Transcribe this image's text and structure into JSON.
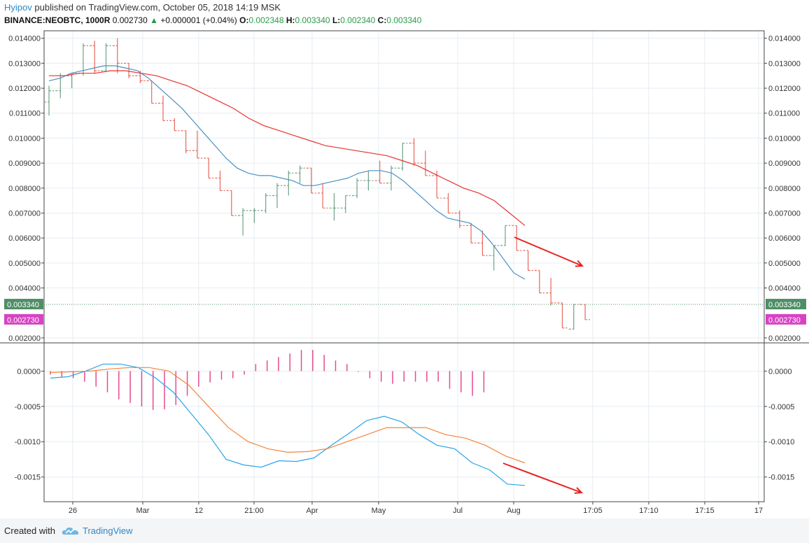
{
  "header": {
    "user": "Hyipov",
    "published": "published on TradingView.com, October 05, 2018 14:19 MSK",
    "symbol": "BINANCE:NEOBTC, 1000R",
    "last": "0.002730",
    "change": "+0.000001 (+0.04%)",
    "o_label": "O:",
    "o_value": "0.002348",
    "h_label": "H:",
    "h_value": "0.003340",
    "l_label": "L:",
    "l_value": "0.002340",
    "c_label": "C:",
    "c_value": "0.003340"
  },
  "footer": {
    "created_with": "Created with",
    "brand": "TradingView"
  },
  "colors": {
    "bull": "#6fa287",
    "bear": "#e8685a",
    "ma_fast": "#4a90c2",
    "ma_slow": "#e8322e",
    "macd": "#2aa4e8",
    "signal": "#f4843a",
    "histogram": "#e54b8e",
    "arrow": "#e8221f",
    "last_price_tag": "#4f8e66",
    "close_tag": "#d643c3"
  },
  "chart_data": [
    {
      "type": "ohlc",
      "name": "price",
      "ylim": [
        0.0018,
        0.0143
      ],
      "y_ticks": [
        "0.014000",
        "0.013000",
        "0.012000",
        "0.011000",
        "0.010000",
        "0.009000",
        "0.008000",
        "0.007000",
        "0.006000",
        "0.005000",
        "0.004000",
        "0.002000"
      ],
      "bars": [
        {
          "o": 0.01145,
          "h": 0.0121,
          "l": 0.0109,
          "c": 0.0119
        },
        {
          "o": 0.0119,
          "h": 0.0126,
          "l": 0.0116,
          "c": 0.0125
        },
        {
          "o": 0.0125,
          "h": 0.0126,
          "l": 0.012,
          "c": 0.0126
        },
        {
          "o": 0.0126,
          "h": 0.0138,
          "l": 0.0125,
          "c": 0.0137
        },
        {
          "o": 0.0137,
          "h": 0.0139,
          "l": 0.0126,
          "c": 0.0127
        },
        {
          "o": 0.0127,
          "h": 0.0138,
          "l": 0.0127,
          "c": 0.0137
        },
        {
          "o": 0.0137,
          "h": 0.014,
          "l": 0.0126,
          "c": 0.013
        },
        {
          "o": 0.013,
          "h": 0.013,
          "l": 0.0124,
          "c": 0.0125
        },
        {
          "o": 0.0125,
          "h": 0.0127,
          "l": 0.0122,
          "c": 0.0123
        },
        {
          "o": 0.0123,
          "h": 0.0123,
          "l": 0.0114,
          "c": 0.0114
        },
        {
          "o": 0.0114,
          "h": 0.0117,
          "l": 0.0107,
          "c": 0.0107
        },
        {
          "o": 0.0107,
          "h": 0.0108,
          "l": 0.0103,
          "c": 0.0103
        },
        {
          "o": 0.0103,
          "h": 0.0103,
          "l": 0.0094,
          "c": 0.0095
        },
        {
          "o": 0.0095,
          "h": 0.0103,
          "l": 0.0092,
          "c": 0.0092
        },
        {
          "o": 0.0092,
          "h": 0.0092,
          "l": 0.0084,
          "c": 0.0084
        },
        {
          "o": 0.0084,
          "h": 0.0087,
          "l": 0.0079,
          "c": 0.0079
        },
        {
          "o": 0.0079,
          "h": 0.0079,
          "l": 0.0069,
          "c": 0.0069
        },
        {
          "o": 0.0069,
          "h": 0.0072,
          "l": 0.0061,
          "c": 0.0071
        },
        {
          "o": 0.0071,
          "h": 0.0072,
          "l": 0.0066,
          "c": 0.0071
        },
        {
          "o": 0.0071,
          "h": 0.0078,
          "l": 0.007,
          "c": 0.0077
        },
        {
          "o": 0.0077,
          "h": 0.0082,
          "l": 0.0072,
          "c": 0.0081
        },
        {
          "o": 0.0081,
          "h": 0.0087,
          "l": 0.0077,
          "c": 0.0086
        },
        {
          "o": 0.0086,
          "h": 0.0089,
          "l": 0.0082,
          "c": 0.0088
        },
        {
          "o": 0.0088,
          "h": 0.0088,
          "l": 0.0078,
          "c": 0.0078
        },
        {
          "o": 0.0078,
          "h": 0.0082,
          "l": 0.0072,
          "c": 0.0072
        },
        {
          "o": 0.0072,
          "h": 0.0078,
          "l": 0.0067,
          "c": 0.0072
        },
        {
          "o": 0.0072,
          "h": 0.0077,
          "l": 0.007,
          "c": 0.0077
        },
        {
          "o": 0.0077,
          "h": 0.0084,
          "l": 0.0076,
          "c": 0.0083
        },
        {
          "o": 0.0083,
          "h": 0.0087,
          "l": 0.0079,
          "c": 0.0083
        },
        {
          "o": 0.0083,
          "h": 0.0091,
          "l": 0.0082,
          "c": 0.0082
        },
        {
          "o": 0.0082,
          "h": 0.0089,
          "l": 0.0079,
          "c": 0.0088
        },
        {
          "o": 0.0088,
          "h": 0.0098,
          "l": 0.0087,
          "c": 0.0098
        },
        {
          "o": 0.0098,
          "h": 0.01,
          "l": 0.0089,
          "c": 0.009
        },
        {
          "o": 0.009,
          "h": 0.0095,
          "l": 0.0085,
          "c": 0.0085
        },
        {
          "o": 0.0085,
          "h": 0.0087,
          "l": 0.0076,
          "c": 0.0076
        },
        {
          "o": 0.0076,
          "h": 0.0078,
          "l": 0.007,
          "c": 0.007
        },
        {
          "o": 0.007,
          "h": 0.0071,
          "l": 0.0064,
          "c": 0.0065
        },
        {
          "o": 0.0065,
          "h": 0.0066,
          "l": 0.0058,
          "c": 0.0058
        },
        {
          "o": 0.0058,
          "h": 0.0063,
          "l": 0.0053,
          "c": 0.0053
        },
        {
          "o": 0.0053,
          "h": 0.0057,
          "l": 0.0047,
          "c": 0.0057
        },
        {
          "o": 0.0057,
          "h": 0.0065,
          "l": 0.0057,
          "c": 0.0065
        },
        {
          "o": 0.0065,
          "h": 0.0065,
          "l": 0.0055,
          "c": 0.0055
        },
        {
          "o": 0.0055,
          "h": 0.0055,
          "l": 0.0047,
          "c": 0.0047
        },
        {
          "o": 0.0047,
          "h": 0.0047,
          "l": 0.0038,
          "c": 0.0038
        },
        {
          "o": 0.0038,
          "h": 0.0044,
          "l": 0.0033,
          "c": 0.0034
        },
        {
          "o": 0.0034,
          "h": 0.0034,
          "l": 0.0024,
          "c": 0.0024
        },
        {
          "o": 0.00235,
          "h": 0.00334,
          "l": 0.00234,
          "c": 0.00334
        },
        {
          "o": 0.00334,
          "h": 0.00334,
          "l": 0.00273,
          "c": 0.00273
        }
      ],
      "ma_fast": [
        0.0123,
        0.0124,
        0.0126,
        0.0127,
        0.0128,
        0.0129,
        0.0129,
        0.0128,
        0.0127,
        0.0124,
        0.012,
        0.0116,
        0.0112,
        0.0107,
        0.0102,
        0.0097,
        0.0092,
        0.0088,
        0.0086,
        0.0085,
        0.0085,
        0.0084,
        0.0083,
        0.0081,
        0.0081,
        0.0082,
        0.0083,
        0.0084,
        0.0086,
        0.0087,
        0.0087,
        0.0086,
        0.0083,
        0.0079,
        0.0075,
        0.0071,
        0.0068,
        0.0067,
        0.0066,
        0.0063,
        0.0058,
        0.0052,
        0.0046,
        0.00435
      ],
      "ma_slow": [
        0.0125,
        0.0125,
        0.0126,
        0.0126,
        0.0127,
        0.0127,
        0.0126,
        0.0125,
        0.0123,
        0.0121,
        0.0118,
        0.0115,
        0.0112,
        0.0108,
        0.0105,
        0.0103,
        0.0101,
        0.0099,
        0.0097,
        0.0096,
        0.0095,
        0.0094,
        0.0093,
        0.0091,
        0.0089,
        0.0086,
        0.0083,
        0.008,
        0.0078,
        0.0075,
        0.007,
        0.0065
      ],
      "last_price_label": "0.003340",
      "close_label": "0.002730",
      "arrow": {
        "from": [
          0.006
        ],
        "to": [
          0.0049
        ]
      }
    },
    {
      "type": "macd",
      "name": "MACD",
      "ylim": [
        -0.00185,
        0.0004
      ],
      "y_ticks": [
        "0.0000",
        "-0.0005",
        "-0.0010",
        "-0.0015"
      ],
      "macd": [
        -0.0001,
        -8e-05,
        0.0,
        0.0001,
        0.0001,
        5e-05,
        -0.0001,
        -0.0003,
        -0.0006,
        -0.0009,
        -0.00125,
        -0.00133,
        -0.00136,
        -0.00127,
        -0.00128,
        -0.00123,
        -0.00105,
        -0.00088,
        -0.0007,
        -0.00064,
        -0.00072,
        -0.0009,
        -0.00105,
        -0.0011,
        -0.0013,
        -0.0014,
        -0.0016,
        -0.00162
      ],
      "signal": [
        -2e-05,
        -1e-05,
        0.0,
        3e-05,
        5e-05,
        5e-05,
        0.0,
        -0.0002,
        -0.0005,
        -0.0008,
        -0.001,
        -0.0011,
        -0.00115,
        -0.00114,
        -0.0011,
        -0.001,
        -0.0009,
        -0.0008,
        -0.0008,
        -0.0008,
        -0.0009,
        -0.00095,
        -0.00105,
        -0.0012,
        -0.0013
      ],
      "histogram": [
        -5e-05,
        -8e-05,
        -0.0001,
        -0.00015,
        -0.00022,
        -0.0003,
        -0.0004,
        -0.00045,
        -0.0005,
        -0.00055,
        -0.00054,
        -0.00048,
        -0.00035,
        -0.00022,
        -0.00016,
        -0.00012,
        -0.0001,
        -5e-05,
        0.0001,
        0.00015,
        0.0002,
        0.00025,
        0.0003,
        0.0003,
        0.00023,
        0.00015,
        0.0001,
        -1e-05,
        -0.0001,
        -0.00015,
        -0.00018,
        -0.00015,
        -0.00015,
        -0.00015,
        -0.00015,
        -0.00025,
        -0.0003,
        -0.00035,
        -0.0003
      ]
    }
  ],
  "x_axis": {
    "ticks": [
      "26",
      "Mar",
      "12",
      "21:00",
      "Apr",
      "May",
      "Jul",
      "Aug",
      "17:05",
      "17:10",
      "17:15",
      "17"
    ]
  }
}
